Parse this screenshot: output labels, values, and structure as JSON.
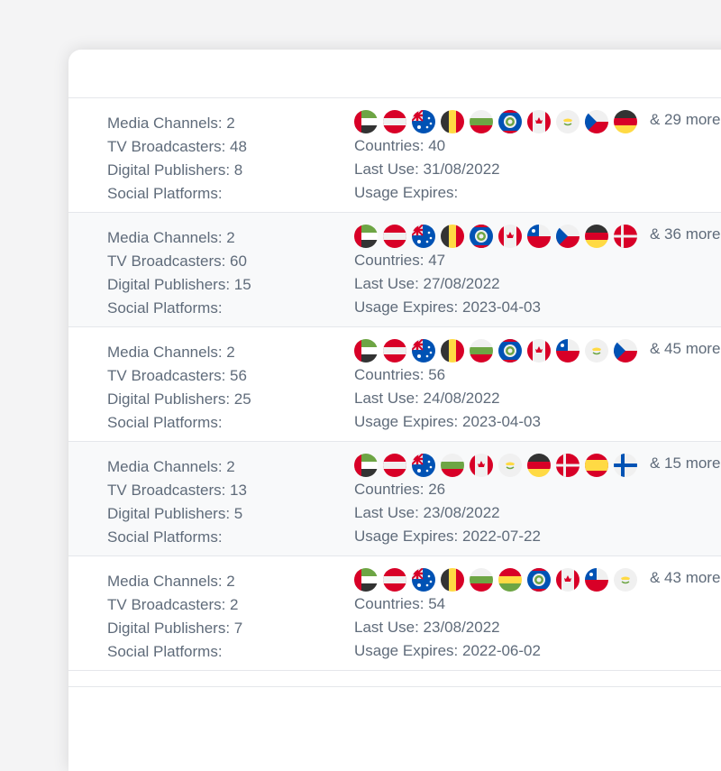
{
  "rows": [
    {
      "media_channels": "Media Channels: 2",
      "tv_broadcasters": "TV Broadcasters: 48",
      "digital_publishers": "Digital Publishers: 8",
      "social_platforms": "Social Platforms:",
      "flags": [
        "ae",
        "at",
        "au",
        "be",
        "bg",
        "bz",
        "ca",
        "cy",
        "cz",
        "de"
      ],
      "more": "& 29 more",
      "countries": "Countries: 40",
      "last_use": "Last Use: 31/08/2022",
      "usage_expires": "Usage Expires:"
    },
    {
      "media_channels": "Media Channels: 2",
      "tv_broadcasters": "TV Broadcasters: 60",
      "digital_publishers": "Digital Publishers: 15",
      "social_platforms": "Social Platforms:",
      "flags": [
        "ae",
        "at",
        "au",
        "be",
        "bz",
        "ca",
        "cl",
        "cz",
        "de",
        "dk"
      ],
      "more": "& 36 more",
      "countries": "Countries: 47",
      "last_use": "Last Use: 27/08/2022",
      "usage_expires": "Usage Expires: 2023-04-03"
    },
    {
      "media_channels": "Media Channels: 2",
      "tv_broadcasters": "TV Broadcasters: 56",
      "digital_publishers": "Digital Publishers: 25",
      "social_platforms": "Social Platforms:",
      "flags": [
        "ae",
        "at",
        "au",
        "be",
        "bg",
        "bz",
        "ca",
        "cl",
        "cy",
        "cz"
      ],
      "more": "& 45 more",
      "countries": "Countries: 56",
      "last_use": "Last Use: 24/08/2022",
      "usage_expires": "Usage Expires: 2023-04-03"
    },
    {
      "media_channels": "Media Channels: 2",
      "tv_broadcasters": "TV Broadcasters: 13",
      "digital_publishers": "Digital Publishers: 5",
      "social_platforms": "Social Platforms:",
      "flags": [
        "ae",
        "at",
        "au",
        "bg",
        "ca",
        "cy",
        "de",
        "dk",
        "es",
        "fi"
      ],
      "more": "& 15 more",
      "countries": "Countries: 26",
      "last_use": "Last Use: 23/08/2022",
      "usage_expires": "Usage Expires: 2022-07-22"
    },
    {
      "media_channels": "Media Channels: 2",
      "tv_broadcasters": "TV Broadcasters: 2",
      "digital_publishers": "Digital Publishers: 7",
      "social_platforms": "Social Platforms:",
      "flags": [
        "ae",
        "at",
        "au",
        "be",
        "bg",
        "bo",
        "bz",
        "ca",
        "cl",
        "cy"
      ],
      "more": "& 43 more",
      "countries": "Countries: 54",
      "last_use": "Last Use: 23/08/2022",
      "usage_expires": "Usage Expires: 2022-06-02"
    }
  ]
}
